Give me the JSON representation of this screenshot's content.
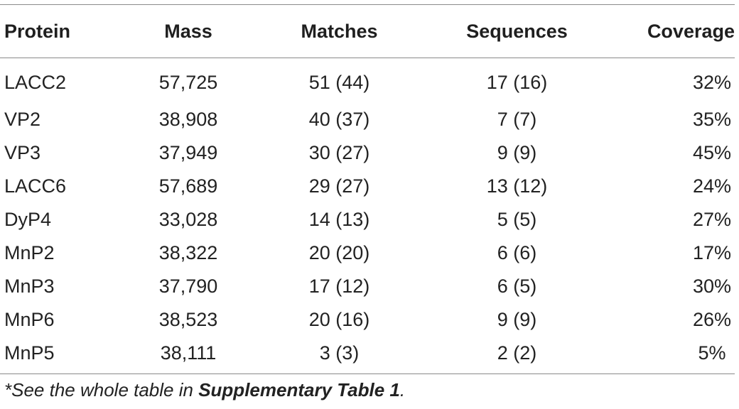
{
  "table": {
    "headers": [
      "Protein",
      "Mass",
      "Matches",
      "Sequences",
      "Coverage"
    ],
    "rows": [
      [
        "LACC2",
        "57,725",
        "51 (44)",
        "17 (16)",
        "32%"
      ],
      [
        "VP2",
        "38,908",
        "40 (37)",
        "7 (7)",
        "35%"
      ],
      [
        "VP3",
        "37,949",
        "30 (27)",
        "9 (9)",
        "45%"
      ],
      [
        "LACC6",
        "57,689",
        "29 (27)",
        "13 (12)",
        "24%"
      ],
      [
        "DyP4",
        "33,028",
        "14 (13)",
        "5 (5)",
        "27%"
      ],
      [
        "MnP2",
        "38,322",
        "20 (20)",
        "6 (6)",
        "17%"
      ],
      [
        "MnP3",
        "37,790",
        "17 (12)",
        "6 (5)",
        "30%"
      ],
      [
        "MnP6",
        "38,523",
        "20 (16)",
        "9 (9)",
        "26%"
      ],
      [
        "MnP5",
        "38,111",
        "3 (3)",
        "2 (2)",
        "5%"
      ]
    ]
  },
  "footnote": {
    "prefix": "*See the whole table in ",
    "link": "Supplementary Table 1",
    "suffix": "."
  }
}
